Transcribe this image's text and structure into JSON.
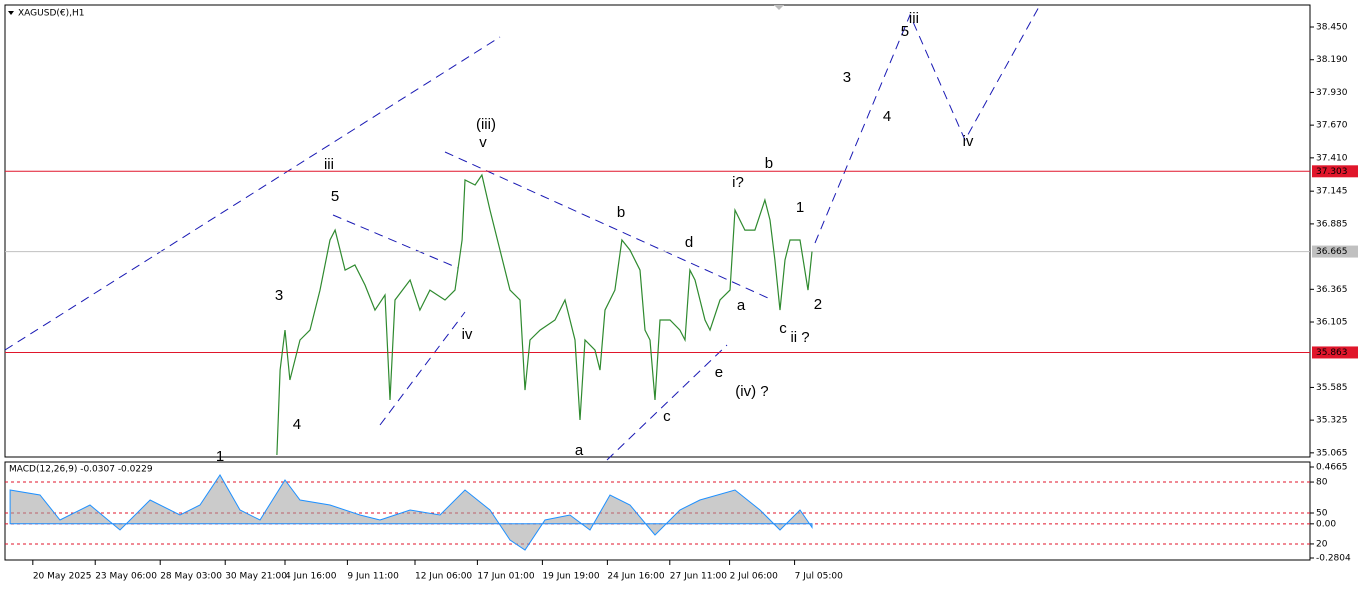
{
  "chart_data": [
    {
      "type": "line",
      "title": "XAGUSD(€),H1",
      "xlim": [
        -0.54,
        99.85
      ],
      "ylim": [
        35.032,
        38.625
      ],
      "yticks": [
        {
          "value": 38.45,
          "label": "38.450"
        },
        {
          "value": 38.19,
          "label": "38.190"
        },
        {
          "value": 37.93,
          "label": "37.930"
        },
        {
          "value": 37.67,
          "label": "37.670"
        },
        {
          "value": 37.41,
          "label": "37.410"
        },
        {
          "value": 37.145,
          "label": "37.145"
        },
        {
          "value": 36.885,
          "label": "36.885"
        },
        {
          "value": 36.365,
          "label": "36.365"
        },
        {
          "value": 36.105,
          "label": "36.105"
        },
        {
          "value": 35.585,
          "label": "35.585"
        },
        {
          "value": 35.325,
          "label": "35.325"
        },
        {
          "value": 35.065,
          "label": "35.065"
        }
      ],
      "levels": [
        {
          "value": 37.303,
          "label": "37.303",
          "color": "#e0162b"
        },
        {
          "value": 36.665,
          "label": "36.665",
          "color": "#c0c0c0"
        },
        {
          "value": 35.863,
          "label": "35.863",
          "color": "#e0162b"
        }
      ],
      "series": [
        {
          "name": "XAGUSD",
          "color": "#2f8a2f",
          "x": [
            20.38,
            20.62,
            21,
            21.38,
            22.15,
            22.92,
            23.69,
            24.46,
            24.85,
            25.62,
            26.38,
            27.15,
            27.92,
            28.69,
            29.08,
            29.46,
            30.62,
            31.38,
            32.15,
            33.31,
            34.08,
            34.62,
            34.85,
            35.62,
            36.15,
            36.77,
            37.54,
            38.31,
            39.08,
            39.46,
            39.85,
            40.62,
            41.77,
            42.54,
            43.31,
            43.69,
            44.08,
            44.85,
            45.23,
            45.62,
            46.38,
            46.92,
            47.54,
            48.31,
            48.69,
            49.08,
            49.46,
            49.85,
            50.62,
            51.38,
            51.77,
            52.15,
            52.54,
            53.31,
            53.69,
            54.46,
            55.23,
            55.62,
            56.38,
            57.15,
            57.92,
            58.31,
            58.69,
            59.08,
            59.46,
            59.85,
            60.62,
            61.23,
            61.54
          ],
          "values": [
            35.048,
            35.723,
            36.041,
            35.644,
            35.962,
            36.041,
            36.359,
            36.757,
            36.836,
            36.518,
            36.558,
            36.399,
            36.2,
            36.32,
            35.485,
            36.28,
            36.439,
            36.2,
            36.359,
            36.28,
            36.359,
            36.757,
            37.234,
            37.194,
            37.274,
            36.995,
            36.677,
            36.359,
            36.28,
            35.564,
            35.962,
            36.041,
            36.121,
            36.28,
            35.962,
            35.326,
            35.962,
            35.882,
            35.723,
            36.2,
            36.359,
            36.757,
            36.677,
            36.518,
            36.041,
            35.962,
            35.485,
            36.121,
            36.121,
            36.041,
            35.962,
            36.518,
            36.439,
            36.121,
            36.041,
            36.28,
            36.359,
            36.995,
            36.836,
            36.836,
            37.075,
            36.916,
            36.598,
            36.2,
            36.598,
            36.757,
            36.757,
            36.359,
            36.665
          ]
        }
      ],
      "annotations": [
        {
          "text": "1",
          "color": "#000000",
          "x": 16,
          "y": 35.03
        },
        {
          "text": "3",
          "color": "#000000",
          "x": 20.54,
          "y": 36.312
        },
        {
          "text": "4",
          "color": "#000000",
          "x": 21.92,
          "y": 35.286
        },
        {
          "text": "5",
          "color": "#000000",
          "x": 24.85,
          "y": 37.099
        },
        {
          "text": "iii",
          "color": "#e020d0",
          "x": 24.38,
          "y": 37.353
        },
        {
          "text": "iv",
          "color": "#e020d0",
          "x": 35,
          "y": 36.002
        },
        {
          "text": "(iii)",
          "color": "#1a1ab4",
          "x": 36.46,
          "y": 37.671
        },
        {
          "text": "v",
          "color": "#e020d0",
          "x": 36.23,
          "y": 37.528
        },
        {
          "text": "b",
          "color": "#e020d0",
          "x": 46.85,
          "y": 36.971
        },
        {
          "text": "d",
          "color": "#e020d0",
          "x": 52.08,
          "y": 36.733
        },
        {
          "text": "a",
          "color": "#e020d0",
          "x": 43.62,
          "y": 35.08
        },
        {
          "text": "c",
          "color": "#e020d0",
          "x": 50.38,
          "y": 35.35
        },
        {
          "text": "e",
          "color": "#e020d0",
          "x": 54.38,
          "y": 35.7
        },
        {
          "text": "(iv) ?",
          "color": "#1a1ab4",
          "x": 56.92,
          "y": 35.549
        },
        {
          "text": "i?",
          "color": "#e020d0",
          "x": 55.85,
          "y": 37.21
        },
        {
          "text": "b",
          "color": "#000000",
          "x": 58.23,
          "y": 37.361
        },
        {
          "text": "a",
          "color": "#000000",
          "x": 56.08,
          "y": 36.232
        },
        {
          "text": "c",
          "color": "#000000",
          "x": 59.31,
          "y": 36.049
        },
        {
          "text": "ii ?",
          "color": "#e020d0",
          "x": 60.62,
          "y": 35.978
        },
        {
          "text": "1",
          "color": "#000000",
          "x": 60.62,
          "y": 37.011
        },
        {
          "text": "2",
          "color": "#000000",
          "x": 62,
          "y": 36.24
        },
        {
          "text": "3",
          "color": "#000000",
          "x": 64.23,
          "y": 38.045
        },
        {
          "text": "4",
          "color": "#000000",
          "x": 67.31,
          "y": 37.735
        },
        {
          "text": "5",
          "color": "#000000",
          "x": 68.69,
          "y": 38.41
        },
        {
          "text": "iii",
          "color": "#e020d0",
          "x": 69.38,
          "y": 38.514
        },
        {
          "text": "iv",
          "color": "#e020d0",
          "x": 73.54,
          "y": 37.536
        }
      ]
    },
    {
      "type": "area",
      "title": "MACD(12,26,9) -0.0307 -0.0229",
      "xlim": [
        -0.54,
        99.85
      ],
      "ylim": [
        -0.2804,
        0.4665
      ],
      "yticks": [
        0.4665,
        {
          "value": 0.343,
          "label": "80"
        },
        {
          "value": 0.089,
          "label": "50"
        },
        {
          "value": 0,
          "label": "0.00"
        },
        {
          "value": -0.165,
          "label": "20"
        },
        -0.2804
      ],
      "xticks": [
        {
          "value": 1.6,
          "label": "20 May 2025"
        },
        {
          "value": 6.4,
          "label": "23 May 06:00"
        },
        {
          "value": 11.4,
          "label": "28 May 03:00"
        },
        {
          "value": 16.4,
          "label": "30 May 21:00"
        },
        {
          "value": 21,
          "label": "4 Jun 16:00"
        },
        {
          "value": 25.8,
          "label": "9 Jun 11:00"
        },
        {
          "value": 31,
          "label": "12 Jun 06:00"
        },
        {
          "value": 35.8,
          "label": "17 Jun 01:00"
        },
        {
          "value": 40.8,
          "label": "19 Jun 19:00"
        },
        {
          "value": 45.8,
          "label": "24 Jun 16:00"
        },
        {
          "value": 50.6,
          "label": "27 Jun 11:00"
        },
        {
          "value": 55.2,
          "label": "2 Jul 06:00"
        },
        {
          "value": 60.2,
          "label": "7 Jul 05:00"
        }
      ],
      "series": [
        {
          "name": "MACD",
          "color": "#1e90ff",
          "x": [
            -0.15,
            2.15,
            3.69,
            6,
            8.31,
            10.62,
            12.92,
            14.46,
            16,
            17.54,
            19.08,
            21,
            22.15,
            24.46,
            26.77,
            28.31,
            30.62,
            32.92,
            34.85,
            36.77,
            38.31,
            39.46,
            41,
            42.92,
            44.46,
            46,
            47.54,
            49.46,
            51.38,
            52.92,
            55.62,
            57.54,
            59.08,
            60.62,
            61.54
          ],
          "values": [
            0.2777,
            0.2367,
            0.0315,
            0.1546,
            -0.0506,
            0.1956,
            0.0725,
            0.1546,
            0.4008,
            0.1136,
            0.0315,
            0.3598,
            0.1956,
            0.1546,
            0.0725,
            0.0315,
            0.1136,
            0.0725,
            0.2777,
            0.1136,
            -0.1327,
            -0.2148,
            0.0315,
            0.0725,
            -0.0506,
            0.2367,
            0.1546,
            -0.0917,
            0.1136,
            0.1956,
            0.2777,
            0.1136,
            -0.0506,
            0.1136,
            -0.0296
          ]
        }
      ]
    }
  ]
}
